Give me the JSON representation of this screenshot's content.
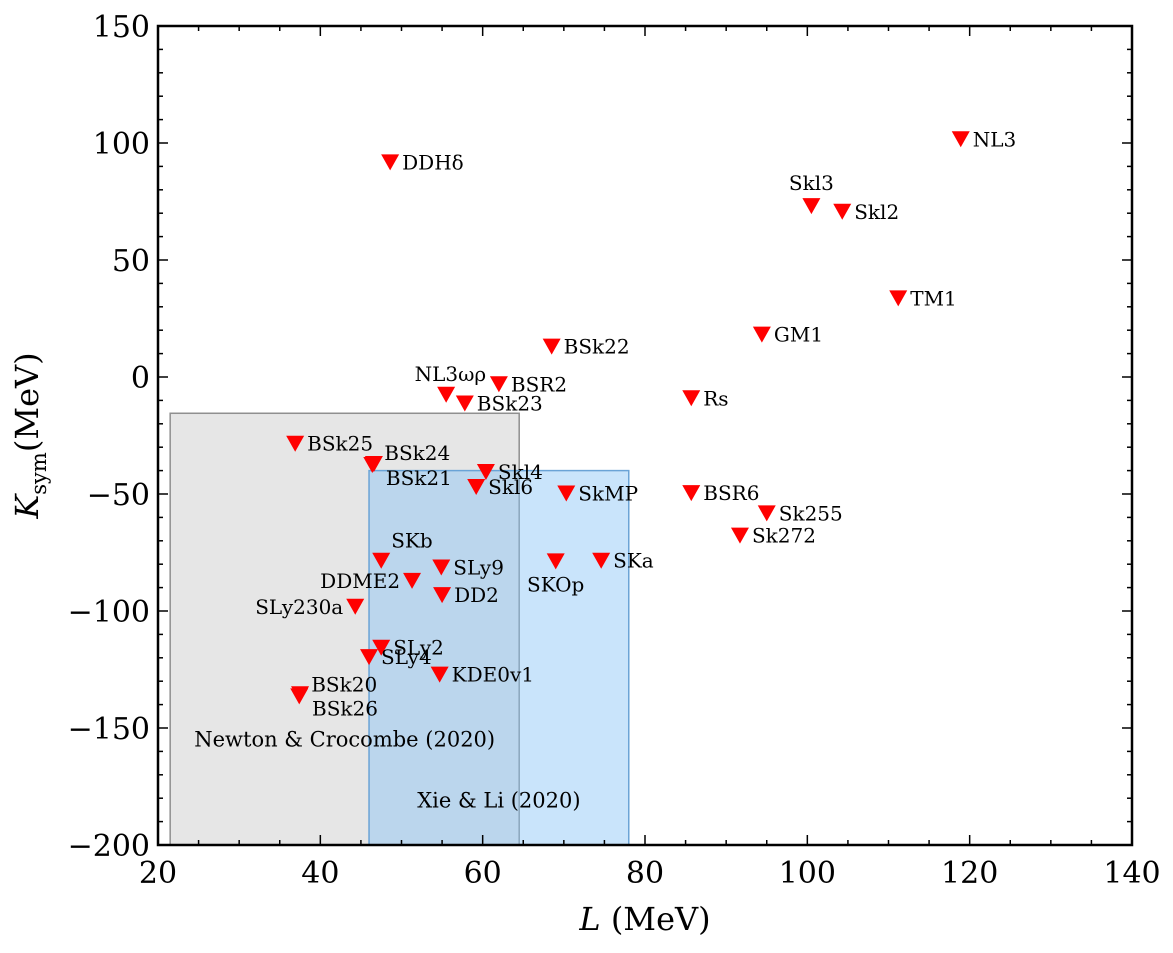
{
  "chart_data": {
    "type": "scatter",
    "xlabel": {
      "symbol": "L",
      "unit": "(MeV)"
    },
    "ylabel": {
      "symbol": "K",
      "sub": "sym",
      "unit": "(MeV)"
    },
    "xlim": [
      20,
      140
    ],
    "ylim": [
      -200,
      150
    ],
    "xticks": [
      20,
      40,
      60,
      80,
      100,
      120,
      140
    ],
    "yticks": [
      -200,
      -150,
      -100,
      -50,
      0,
      50,
      100,
      150
    ],
    "ytick_labels": [
      "−200",
      "−150",
      "−100",
      "−50",
      "0",
      "50",
      "100",
      "150"
    ],
    "marker": {
      "shape": "down-triangle",
      "color": "#ff0000"
    },
    "regions": [
      {
        "label": "Newton & Crocombe (2020)",
        "x": [
          21.5,
          64.5
        ],
        "y": [
          -200,
          -15.5
        ],
        "fill": "#b3b3b3",
        "opacity": 0.33,
        "stroke": "#8f8f8f",
        "label_at": [
          43,
          -155
        ]
      },
      {
        "label": "Xie & Li (2020)",
        "x": [
          46,
          78
        ],
        "y": [
          -200,
          -40
        ],
        "fill": "#87c3f7",
        "opacity": 0.45,
        "stroke": "#6aa3d6",
        "label_at": [
          62,
          -181
        ]
      }
    ],
    "points": [
      {
        "name": "DDHδ",
        "x": 48.6,
        "y": 91.7,
        "label_pos": "right"
      },
      {
        "name": "NL3",
        "x": 118.9,
        "y": 101.6,
        "label_pos": "right"
      },
      {
        "name": "Skl3",
        "x": 100.5,
        "y": 73.0,
        "label_pos": "above"
      },
      {
        "name": "Skl2",
        "x": 104.3,
        "y": 70.6,
        "label_pos": "right"
      },
      {
        "name": "TM1",
        "x": 111.2,
        "y": 33.6,
        "label_pos": "right"
      },
      {
        "name": "GM1",
        "x": 94.4,
        "y": 18.1,
        "label_pos": "right"
      },
      {
        "name": "BSk22",
        "x": 68.5,
        "y": 13.0,
        "label_pos": "right"
      },
      {
        "name": "NL3ωρ",
        "x": 55.5,
        "y": -7.6,
        "label_pos": "above-left"
      },
      {
        "name": "BSR2",
        "x": 62.0,
        "y": -3.1,
        "label_pos": "right"
      },
      {
        "name": "BSk23",
        "x": 57.8,
        "y": -11.3,
        "label_pos": "right"
      },
      {
        "name": "Rs",
        "x": 85.7,
        "y": -9.1,
        "label_pos": "right"
      },
      {
        "name": "BSk25",
        "x": 36.9,
        "y": -28.5,
        "label_pos": "right"
      },
      {
        "name": "BSk24",
        "x": 46.4,
        "y": -37.6,
        "label_pos": "upper-right"
      },
      {
        "name": "BSk21",
        "x": 46.6,
        "y": -37.2,
        "label_pos": "lower-right"
      },
      {
        "name": "Skl4",
        "x": 60.4,
        "y": -40.6,
        "label_pos": "right"
      },
      {
        "name": "Skl6",
        "x": 59.2,
        "y": -47.0,
        "label_pos": "right"
      },
      {
        "name": "SkMP",
        "x": 70.3,
        "y": -49.8,
        "label_pos": "right"
      },
      {
        "name": "BSR6",
        "x": 85.7,
        "y": -49.6,
        "label_pos": "right"
      },
      {
        "name": "Sk255",
        "x": 95.0,
        "y": -58.3,
        "label_pos": "right"
      },
      {
        "name": "Sk272",
        "x": 91.7,
        "y": -67.8,
        "label_pos": "right"
      },
      {
        "name": "SKb",
        "x": 47.5,
        "y": -78.5,
        "label_pos": "above-right"
      },
      {
        "name": "SLy9",
        "x": 54.9,
        "y": -81.4,
        "label_pos": "right"
      },
      {
        "name": "SKOp",
        "x": 69.0,
        "y": -78.8,
        "label_pos": "below"
      },
      {
        "name": "SKa",
        "x": 74.6,
        "y": -78.5,
        "label_pos": "right"
      },
      {
        "name": "DDME2",
        "x": 51.3,
        "y": -87.1,
        "label_pos": "left"
      },
      {
        "name": "DD2",
        "x": 55.0,
        "y": -93.2,
        "label_pos": "right"
      },
      {
        "name": "SLy230a",
        "x": 44.3,
        "y": -98.2,
        "label_pos": "left"
      },
      {
        "name": "SLy2",
        "x": 47.5,
        "y": -115.7,
        "label_pos": "right"
      },
      {
        "name": "SLy4",
        "x": 46.0,
        "y": -119.7,
        "label_pos": "right"
      },
      {
        "name": "KDE0v1",
        "x": 54.7,
        "y": -127.2,
        "label_pos": "right"
      },
      {
        "name": "BSk20",
        "x": 37.4,
        "y": -136.5,
        "label_pos": "upper-right"
      },
      {
        "name": "BSk26",
        "x": 37.5,
        "y": -135.6,
        "label_pos": "lower-right"
      }
    ]
  }
}
